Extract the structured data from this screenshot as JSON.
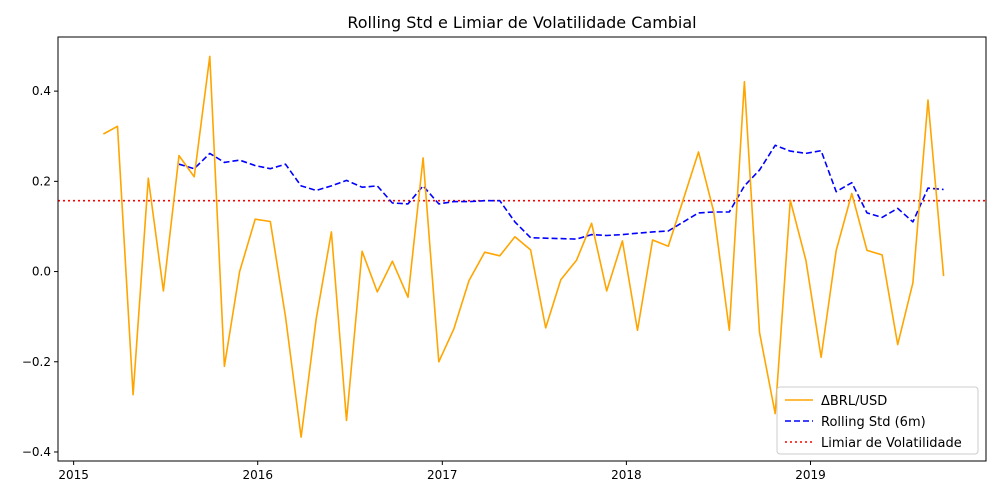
{
  "chart_data": {
    "type": "line",
    "title": "Rolling Std e Limiar de Volatilidade Cambial",
    "xlabel": "",
    "ylabel": "",
    "xlim": [
      "2014-12-01",
      "2019-12-15"
    ],
    "ylim": [
      -0.42,
      0.52
    ],
    "x_ticks": [
      "2015-01-01",
      "2016-01-01",
      "2017-01-01",
      "2018-01-01",
      "2019-01-01"
    ],
    "x_tick_labels": [
      "2015",
      "2016",
      "2017",
      "2018",
      "2019"
    ],
    "y_ticks": [
      -0.4,
      -0.2,
      0.0,
      0.2,
      0.4
    ],
    "y_tick_labels": [
      "−0.4",
      "−0.2",
      "0.0",
      "0.2",
      "0.4"
    ],
    "grid": false,
    "legend_position": "bottom-right",
    "dates": [
      "2015-03-01",
      "2015-03-29",
      "2015-04-29",
      "2015-05-29",
      "2015-06-28",
      "2015-07-29",
      "2015-08-28",
      "2015-09-28",
      "2015-10-27",
      "2015-11-26",
      "2015-12-27",
      "2016-01-26",
      "2016-02-25",
      "2016-03-27",
      "2016-04-26",
      "2016-05-26",
      "2016-06-25",
      "2016-07-26",
      "2016-08-25",
      "2016-09-24",
      "2016-10-25",
      "2016-11-24",
      "2016-12-25",
      "2017-01-24",
      "2017-02-23",
      "2017-03-26",
      "2017-04-25",
      "2017-05-25",
      "2017-06-25",
      "2017-07-25",
      "2017-08-24",
      "2017-09-24",
      "2017-10-24",
      "2017-11-23",
      "2017-12-24",
      "2018-01-23",
      "2018-02-22",
      "2018-03-25",
      "2018-05-24",
      "2018-06-23",
      "2018-07-24",
      "2018-08-23",
      "2018-09-22",
      "2018-10-23",
      "2018-11-22",
      "2018-12-23",
      "2019-01-22",
      "2019-02-21",
      "2019-03-24",
      "2019-04-23",
      "2019-05-23",
      "2019-06-23",
      "2019-07-23",
      "2019-08-22",
      "2019-09-22"
    ],
    "series": [
      {
        "name": "ΔBRL/USD",
        "color": "#ffa500",
        "style": "solid",
        "values": [
          0.305,
          0.322,
          -0.273,
          0.207,
          -0.043,
          0.257,
          0.21,
          0.477,
          -0.21,
          0.0,
          0.116,
          0.111,
          -0.1,
          -0.367,
          -0.105,
          0.088,
          -0.33,
          0.045,
          -0.045,
          0.023,
          -0.057,
          0.252,
          -0.2,
          -0.127,
          -0.02,
          0.043,
          0.035,
          0.077,
          0.048,
          -0.125,
          -0.018,
          0.025,
          0.107,
          -0.043,
          0.068,
          -0.13,
          0.07,
          0.056,
          0.265,
          0.133,
          -0.13,
          0.421,
          -0.135,
          -0.315,
          0.158,
          0.025,
          -0.19,
          0.047,
          0.173,
          0.047,
          0.037,
          -0.162,
          -0.025,
          0.38,
          -0.01
        ]
      },
      {
        "name": "Rolling Std (6m)",
        "color": "#0000ff",
        "style": "dashed",
        "values": [
          null,
          null,
          null,
          null,
          null,
          0.238,
          0.228,
          0.262,
          0.242,
          0.247,
          0.235,
          0.228,
          0.238,
          0.19,
          0.18,
          0.19,
          0.202,
          0.187,
          0.19,
          0.152,
          0.15,
          0.19,
          0.15,
          0.155,
          0.155,
          0.157,
          0.157,
          0.11,
          0.075,
          0.074,
          0.073,
          0.072,
          0.082,
          0.08,
          0.082,
          0.085,
          0.088,
          0.09,
          0.13,
          0.132,
          0.132,
          0.19,
          0.225,
          0.28,
          0.267,
          0.262,
          0.268,
          0.177,
          0.197,
          0.13,
          0.12,
          0.14,
          0.11,
          0.185,
          0.182
        ]
      }
    ],
    "threshold": {
      "name": "Limiar de Volatilidade",
      "value": 0.157,
      "color": "#ff0000",
      "style": "dotted"
    }
  }
}
